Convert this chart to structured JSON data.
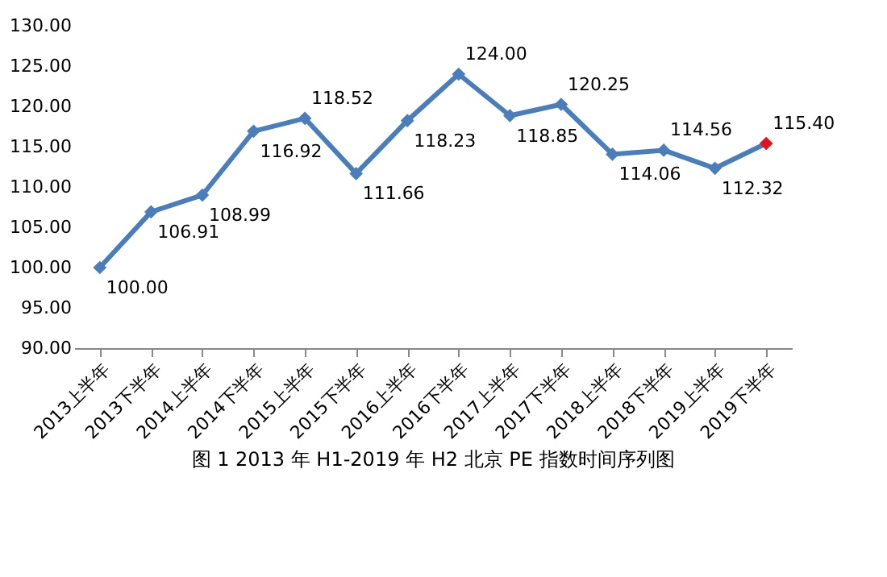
{
  "chart_data": {
    "type": "line",
    "title": "图 1   2013 年 H1-2019 年 H2 北京 PE 指数时间序列图",
    "categories": [
      "2013上半年",
      "2013下半年",
      "2014上半年",
      "2014下半年",
      "2015上半年",
      "2015下半年",
      "2016上半年",
      "2016下半年",
      "2017上半年",
      "2017下半年",
      "2018上半年",
      "2018下半年",
      "2019上半年",
      "2019下半年"
    ],
    "series": [
      {
        "color": "#4a7ebb",
        "colors": [
          "#4a7ebb",
          "#4a7ebb",
          "#4a7ebb",
          "#4a7ebb",
          "#4a7ebb",
          "#4a7ebb",
          "#4a7ebb",
          "#4a7ebb",
          "#4a7ebb",
          "#4a7ebb",
          "#4a7ebb",
          "#4a7ebb",
          "#4a7ebb",
          "#e0141e"
        ],
        "values": [
          100.0,
          106.91,
          108.99,
          116.92,
          118.52,
          111.66,
          118.23,
          124.0,
          118.85,
          120.25,
          114.06,
          114.56,
          112.32,
          115.4
        ],
        "value_labels": [
          "100.00",
          "106.91",
          "108.99",
          "116.92",
          "118.52",
          "111.66",
          "118.23",
          "124.00",
          "118.85",
          "120.25",
          "114.06",
          "114.56",
          "112.32",
          "115.40"
        ]
      }
    ],
    "ylim": [
      90,
      130
    ],
    "yticks": [
      {
        "value": 90,
        "label": "90.00"
      },
      {
        "value": 95,
        "label": "95.00"
      },
      {
        "value": 100,
        "label": "100.00"
      },
      {
        "value": 105,
        "label": "105.00"
      },
      {
        "value": 110,
        "label": "110.00"
      },
      {
        "value": 115,
        "label": "115.00"
      },
      {
        "value": 120,
        "label": "120.00"
      },
      {
        "value": 125,
        "label": "125.00"
      },
      {
        "value": 130,
        "label": "130.00"
      }
    ],
    "marker": "diamond",
    "line_style": "solid",
    "grid": false
  }
}
